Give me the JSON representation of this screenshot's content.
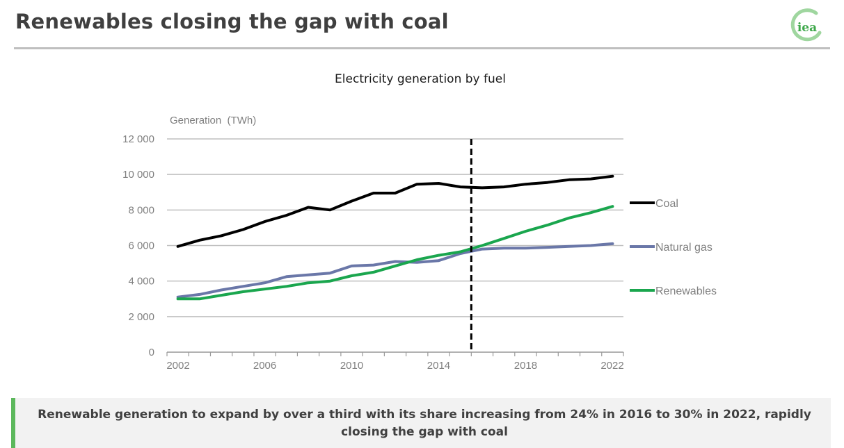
{
  "slide": {
    "title": "Renewables closing the gap with coal",
    "logo_text": "iea",
    "logo_color": "#7fc97f",
    "callout": "Renewable generation to expand by over a third with its share increasing from 24% in 2016 to 30% in 2022, rapidly closing the gap with coal",
    "callout_accent": "#5cb85c"
  },
  "chart_data": {
    "type": "line",
    "title": "Electricity generation by fuel",
    "xlabel": "",
    "ylabel": "Generation  (TWh)",
    "x": [
      2002,
      2003,
      2004,
      2005,
      2006,
      2007,
      2008,
      2009,
      2010,
      2011,
      2012,
      2013,
      2014,
      2015,
      2016,
      2017,
      2018,
      2019,
      2020,
      2021,
      2022
    ],
    "x_tick_labels": [
      "2002",
      "2006",
      "2010",
      "2014",
      "2018",
      "2022"
    ],
    "ylim": [
      0,
      12000
    ],
    "y_ticks": [
      0,
      2000,
      4000,
      6000,
      8000,
      10000,
      12000
    ],
    "y_tick_labels": [
      "0",
      "2 000",
      "4 000",
      "6 000",
      "8 000",
      "10 000",
      "12 000"
    ],
    "grid": true,
    "legend_position": "right",
    "annotation": {
      "type": "vertical-dashed-line",
      "between": [
        2015,
        2016
      ],
      "meaning": "forecast start"
    },
    "series": [
      {
        "name": "Coal",
        "color": "#000000",
        "values": [
          5950,
          6300,
          6550,
          6900,
          7350,
          7700,
          8150,
          8000,
          8500,
          8950,
          8950,
          9450,
          9500,
          9300,
          9250,
          9300,
          9450,
          9550,
          9700,
          9750,
          9900
        ]
      },
      {
        "name": "Natural gas",
        "color": "#6a77a8",
        "values": [
          3100,
          3250,
          3500,
          3700,
          3900,
          4250,
          4350,
          4450,
          4850,
          4900,
          5100,
          5050,
          5150,
          5550,
          5800,
          5850,
          5850,
          5900,
          5950,
          6000,
          6100
        ]
      },
      {
        "name": "Renewables",
        "color": "#1aa64e",
        "values": [
          3000,
          3000,
          3200,
          3400,
          3550,
          3700,
          3900,
          4000,
          4300,
          4500,
          4850,
          5200,
          5450,
          5650,
          6000,
          6400,
          6800,
          7150,
          7550,
          7850,
          8200
        ]
      }
    ]
  }
}
